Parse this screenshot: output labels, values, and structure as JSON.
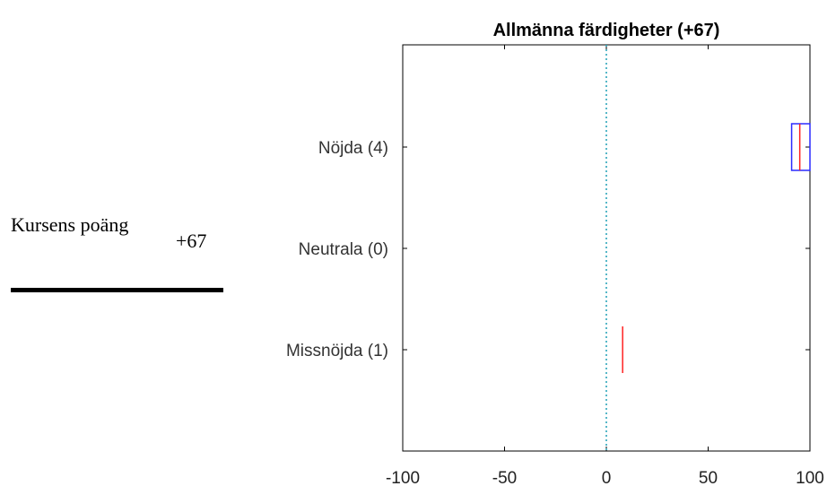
{
  "score": {
    "label": "Kursens poäng",
    "value": "+67"
  },
  "chart_data": {
    "type": "boxplot",
    "title": "Allmänna färdigheter (+67)",
    "xlabel": "",
    "ylabel": "",
    "xlim": [
      -100,
      100
    ],
    "xticks": [
      -100,
      -50,
      0,
      50,
      100
    ],
    "xtick_labels": [
      "-100",
      "-50",
      "0",
      "50",
      "100"
    ],
    "reference_line": {
      "x": 0,
      "style": "dotted",
      "color": "#1f9fb5"
    },
    "categories": [
      "Nöjda (4)",
      "Neutrala (0)",
      "Missnöjda (1)"
    ],
    "groups": [
      {
        "label": "Nöjda (4)",
        "n": 4,
        "q1": 91,
        "median": 95,
        "q3": 100
      },
      {
        "label": "Neutrala (0)",
        "n": 0
      },
      {
        "label": "Missnöjda (1)",
        "n": 1,
        "median": 8
      }
    ],
    "colors": {
      "box": "#2b2bff",
      "median": "#ff2020",
      "axis": "#000000",
      "ref": "#1f9fb5"
    }
  }
}
